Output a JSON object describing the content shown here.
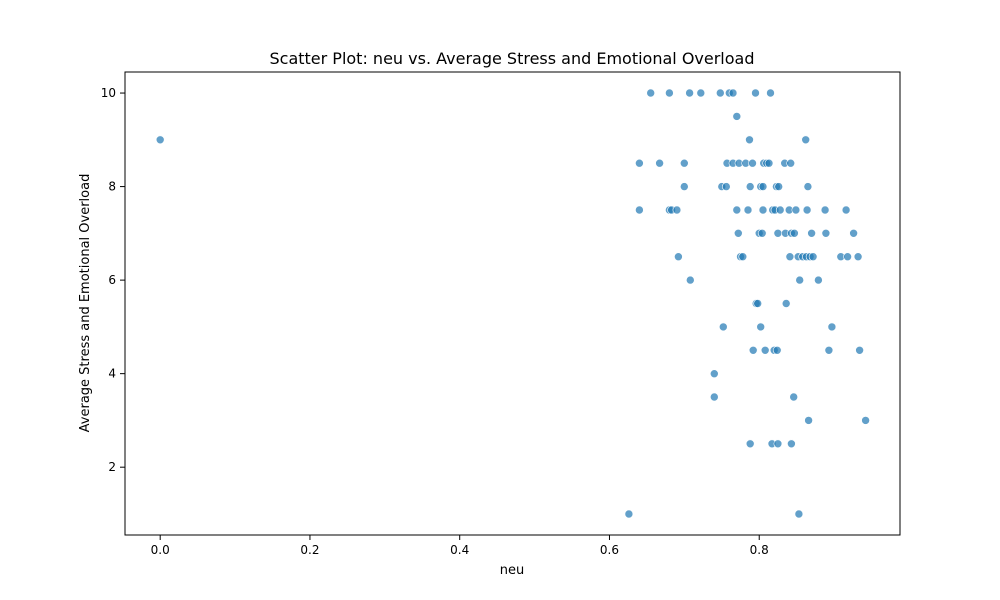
{
  "chart_data": {
    "type": "scatter",
    "title": "Scatter Plot: neu vs. Average Stress and Emotional Overload",
    "xlabel": "neu",
    "ylabel": "Average Stress and Emotional Overload",
    "xlim": [
      -0.047,
      0.988
    ],
    "ylim": [
      0.55,
      10.45
    ],
    "xticks": [
      0.0,
      0.2,
      0.4,
      0.6,
      0.8
    ],
    "xtick_labels": [
      "0.0",
      "0.2",
      "0.4",
      "0.6",
      "0.8"
    ],
    "yticks": [
      2,
      4,
      6,
      8,
      10
    ],
    "ytick_labels": [
      "2",
      "4",
      "6",
      "8",
      "10"
    ],
    "grid": false,
    "point_color": "#1f77b4",
    "points": [
      [
        0.0,
        9.0
      ],
      [
        0.626,
        1.0
      ],
      [
        0.64,
        8.5
      ],
      [
        0.64,
        7.5
      ],
      [
        0.655,
        10.0
      ],
      [
        0.667,
        8.5
      ],
      [
        0.68,
        10.0
      ],
      [
        0.68,
        7.5
      ],
      [
        0.683,
        7.5
      ],
      [
        0.69,
        7.5
      ],
      [
        0.692,
        6.5
      ],
      [
        0.7,
        8.5
      ],
      [
        0.7,
        8.0
      ],
      [
        0.707,
        10.0
      ],
      [
        0.708,
        6.0
      ],
      [
        0.722,
        10.0
      ],
      [
        0.74,
        4.0
      ],
      [
        0.74,
        3.5
      ],
      [
        0.748,
        10.0
      ],
      [
        0.75,
        8.0
      ],
      [
        0.752,
        5.0
      ],
      [
        0.756,
        8.0
      ],
      [
        0.757,
        8.5
      ],
      [
        0.76,
        10.0
      ],
      [
        0.765,
        10.0
      ],
      [
        0.765,
        8.5
      ],
      [
        0.77,
        9.5
      ],
      [
        0.77,
        7.5
      ],
      [
        0.772,
        7.0
      ],
      [
        0.773,
        8.5
      ],
      [
        0.775,
        6.5
      ],
      [
        0.778,
        6.5
      ],
      [
        0.782,
        8.5
      ],
      [
        0.785,
        7.5
      ],
      [
        0.787,
        9.0
      ],
      [
        0.788,
        8.0
      ],
      [
        0.788,
        2.5
      ],
      [
        0.791,
        8.5
      ],
      [
        0.792,
        4.5
      ],
      [
        0.795,
        10.0
      ],
      [
        0.796,
        5.5
      ],
      [
        0.798,
        5.5
      ],
      [
        0.8,
        7.0
      ],
      [
        0.802,
        8.0
      ],
      [
        0.802,
        5.0
      ],
      [
        0.804,
        7.0
      ],
      [
        0.805,
        8.0
      ],
      [
        0.805,
        7.5
      ],
      [
        0.806,
        8.5
      ],
      [
        0.808,
        4.5
      ],
      [
        0.81,
        8.5
      ],
      [
        0.813,
        8.5
      ],
      [
        0.815,
        10.0
      ],
      [
        0.817,
        2.5
      ],
      [
        0.818,
        7.5
      ],
      [
        0.82,
        4.5
      ],
      [
        0.821,
        7.5
      ],
      [
        0.823,
        8.0
      ],
      [
        0.824,
        4.5
      ],
      [
        0.825,
        7.0
      ],
      [
        0.825,
        2.5
      ],
      [
        0.826,
        8.0
      ],
      [
        0.828,
        7.5
      ],
      [
        0.834,
        8.5
      ],
      [
        0.835,
        7.0
      ],
      [
        0.836,
        5.5
      ],
      [
        0.84,
        7.5
      ],
      [
        0.841,
        6.5
      ],
      [
        0.842,
        8.5
      ],
      [
        0.843,
        7.0
      ],
      [
        0.843,
        2.5
      ],
      [
        0.846,
        3.5
      ],
      [
        0.847,
        7.0
      ],
      [
        0.849,
        7.5
      ],
      [
        0.852,
        6.5
      ],
      [
        0.853,
        1.0
      ],
      [
        0.854,
        6.0
      ],
      [
        0.858,
        6.5
      ],
      [
        0.862,
        9.0
      ],
      [
        0.863,
        6.5
      ],
      [
        0.864,
        7.5
      ],
      [
        0.865,
        8.0
      ],
      [
        0.866,
        3.0
      ],
      [
        0.868,
        6.5
      ],
      [
        0.87,
        7.0
      ],
      [
        0.872,
        6.5
      ],
      [
        0.879,
        6.0
      ],
      [
        0.888,
        7.5
      ],
      [
        0.889,
        7.0
      ],
      [
        0.893,
        4.5
      ],
      [
        0.897,
        5.0
      ],
      [
        0.909,
        6.5
      ],
      [
        0.916,
        7.5
      ],
      [
        0.918,
        6.5
      ],
      [
        0.926,
        7.0
      ],
      [
        0.932,
        6.5
      ],
      [
        0.934,
        4.5
      ],
      [
        0.942,
        3.0
      ]
    ]
  }
}
